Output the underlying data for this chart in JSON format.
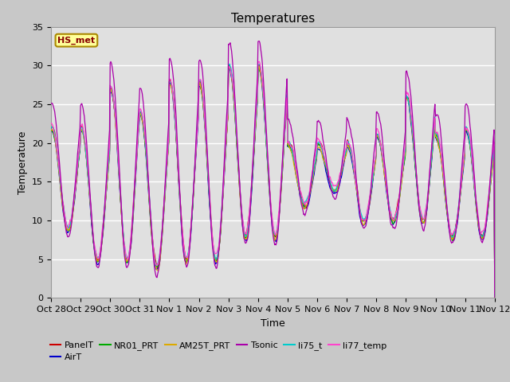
{
  "title": "Temperatures",
  "ylabel": "Temperature",
  "xlabel": "Time",
  "ylim": [
    0,
    35
  ],
  "n_days": 15,
  "x_tick_labels": [
    "Oct 28",
    "Oct 29",
    "Oct 30",
    "Oct 31",
    "Nov 1",
    "Nov 2",
    "Nov 3",
    "Nov 4",
    "Nov 5",
    "Nov 6",
    "Nov 7",
    "Nov 8",
    "Nov 9",
    "Nov 10",
    "Nov 11",
    "Nov 12"
  ],
  "series_colors": {
    "PanelT": "#cc0000",
    "AirT": "#0000cc",
    "NR01_PRT": "#00aa00",
    "AM25T_PRT": "#ddaa00",
    "Tsonic": "#aa00aa",
    "li75_t": "#00cccc",
    "li77_temp": "#ff44cc"
  },
  "bg_color": "#c8c8c8",
  "plot_bg_color": "#e0e0e0",
  "title_fontsize": 11,
  "axis_fontsize": 9,
  "tick_fontsize": 8,
  "legend_fontsize": 8
}
